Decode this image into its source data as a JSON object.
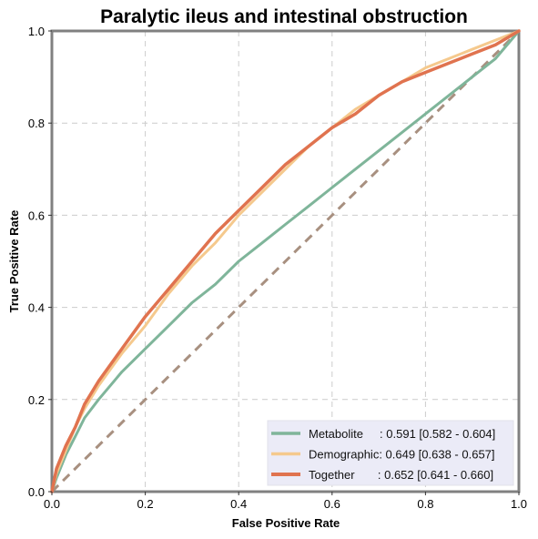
{
  "chart_data": {
    "type": "line",
    "title": "Paralytic ileus and intestinal obstruction",
    "xlabel": "False Positive Rate",
    "ylabel": "True Positive Rate",
    "xlim": [
      0,
      1
    ],
    "ylim": [
      0,
      1
    ],
    "x_ticks": [
      "0.0",
      "0.2",
      "0.4",
      "0.6",
      "0.8",
      "1.0"
    ],
    "y_ticks": [
      "0.0",
      "0.2",
      "0.4",
      "0.6",
      "0.8",
      "1.0"
    ],
    "grid": true,
    "legend_position": "bottom-right",
    "reference_line": {
      "x": [
        0,
        1
      ],
      "y": [
        0,
        1
      ],
      "color": "#a89080"
    },
    "series": [
      {
        "name": "Metabolite",
        "legend_label": "Metabolite     : 0.591 [0.582 - 0.604]",
        "color": "#7fb59a",
        "x": [
          0,
          0.01,
          0.03,
          0.05,
          0.07,
          0.1,
          0.15,
          0.2,
          0.25,
          0.3,
          0.35,
          0.4,
          0.45,
          0.5,
          0.55,
          0.6,
          0.65,
          0.7,
          0.75,
          0.8,
          0.85,
          0.9,
          0.95,
          1.0
        ],
        "y": [
          0,
          0.03,
          0.08,
          0.12,
          0.16,
          0.2,
          0.26,
          0.31,
          0.36,
          0.41,
          0.45,
          0.5,
          0.54,
          0.58,
          0.62,
          0.66,
          0.7,
          0.74,
          0.78,
          0.82,
          0.86,
          0.9,
          0.94,
          1.0
        ]
      },
      {
        "name": "Demographic",
        "legend_label": "Demographic: 0.649 [0.638 - 0.657]",
        "color": "#f5c98d",
        "x": [
          0,
          0.01,
          0.03,
          0.05,
          0.07,
          0.1,
          0.15,
          0.2,
          0.25,
          0.3,
          0.35,
          0.4,
          0.45,
          0.5,
          0.55,
          0.6,
          0.65,
          0.7,
          0.75,
          0.8,
          0.85,
          0.9,
          0.95,
          1.0
        ],
        "y": [
          0,
          0.04,
          0.09,
          0.14,
          0.18,
          0.23,
          0.3,
          0.36,
          0.43,
          0.49,
          0.54,
          0.6,
          0.65,
          0.7,
          0.75,
          0.79,
          0.83,
          0.86,
          0.89,
          0.92,
          0.94,
          0.96,
          0.98,
          1.0
        ]
      },
      {
        "name": "Together",
        "legend_label": "Together       : 0.652 [0.641 - 0.660]",
        "color": "#e0734f",
        "x": [
          0,
          0.01,
          0.03,
          0.05,
          0.07,
          0.1,
          0.15,
          0.2,
          0.25,
          0.3,
          0.35,
          0.4,
          0.45,
          0.5,
          0.55,
          0.6,
          0.65,
          0.7,
          0.75,
          0.8,
          0.85,
          0.9,
          0.95,
          1.0
        ],
        "y": [
          0,
          0.05,
          0.1,
          0.14,
          0.19,
          0.24,
          0.31,
          0.38,
          0.44,
          0.5,
          0.56,
          0.61,
          0.66,
          0.71,
          0.75,
          0.79,
          0.82,
          0.86,
          0.89,
          0.91,
          0.93,
          0.95,
          0.97,
          1.0
        ]
      }
    ]
  }
}
